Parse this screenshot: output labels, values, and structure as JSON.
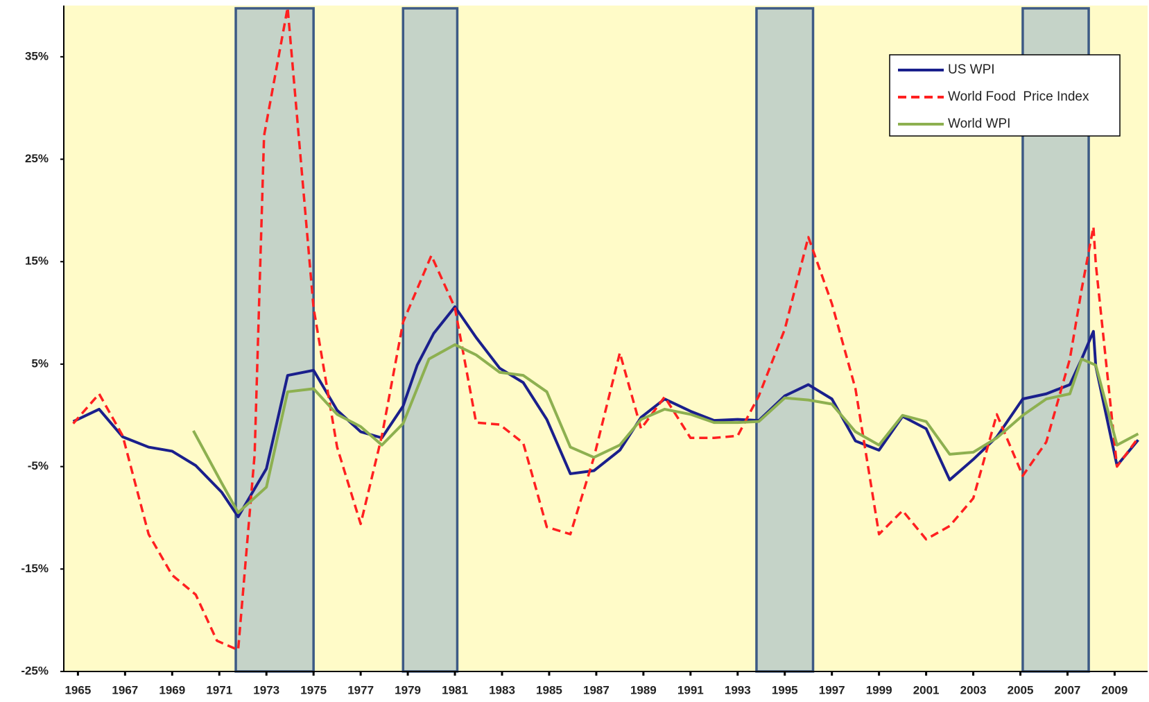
{
  "chart_data": {
    "type": "line",
    "xlim": [
      1964.4,
      2010.4
    ],
    "xticks": [
      1965,
      1967,
      1969,
      1971,
      1973,
      1975,
      1977,
      1979,
      1981,
      1983,
      1985,
      1987,
      1989,
      1991,
      1993,
      1995,
      1997,
      1999,
      2001,
      2003,
      2005,
      2007,
      2009
    ],
    "ylim": [
      -25,
      40
    ],
    "yticks": [
      {
        "value": -25,
        "label": "-25%"
      },
      {
        "value": -15,
        "label": "-15%"
      },
      {
        "value": -5,
        "label": "-5%"
      },
      {
        "value": 5,
        "label": "5%"
      },
      {
        "value": 15,
        "label": "15%"
      },
      {
        "value": 25,
        "label": "25%"
      },
      {
        "value": 35,
        "label": "35%"
      }
    ],
    "legend_position": "top-right",
    "background": "#fffbc8",
    "shaded_periods": [
      [
        1971.7,
        1975.0
      ],
      [
        1978.8,
        1981.1
      ],
      [
        1993.8,
        1996.2
      ],
      [
        2005.1,
        2007.9
      ]
    ],
    "series": [
      {
        "name": "US WPI",
        "color": "#1a1f8c",
        "dash": false,
        "x": [
          1964.8,
          1965.9,
          1966.9,
          1968.0,
          1969.0,
          1970.0,
          1971.1,
          1971.8,
          1973.0,
          1973.9,
          1975.0,
          1976.0,
          1977.0,
          1977.9,
          1978.8,
          1979.4,
          1980.1,
          1981.0,
          1981.9,
          1982.9,
          1983.9,
          1984.9,
          1985.9,
          1986.9,
          1988.0,
          1988.9,
          1989.9,
          1991.0,
          1992.0,
          1993.0,
          1993.9,
          1995.0,
          1996.0,
          1997.0,
          1998.0,
          1999.0,
          2000.0,
          2001.0,
          2002.0,
          2003.0,
          2004.0,
          2005.1,
          2006.1,
          2007.1,
          2007.6,
          2008.1,
          2008.2,
          2009.1,
          2010.0
        ],
        "values": [
          -0.6,
          0.6,
          -2.1,
          -3.1,
          -3.5,
          -4.9,
          -7.5,
          -9.9,
          -5.2,
          3.9,
          4.4,
          0.5,
          -1.6,
          -2.2,
          0.9,
          4.9,
          8.0,
          10.6,
          7.6,
          4.6,
          3.2,
          -0.4,
          -5.7,
          -5.4,
          -3.4,
          -0.2,
          1.6,
          0.4,
          -0.5,
          -0.4,
          -0.5,
          1.9,
          3.0,
          1.6,
          -2.5,
          -3.4,
          -0.1,
          -1.3,
          -6.3,
          -4.3,
          -2.1,
          1.6,
          2.1,
          3.0,
          5.5,
          8.2,
          4.8,
          -4.9,
          -2.4
        ]
      },
      {
        "name": "World Food  Price Index",
        "color": "#ff2020",
        "dash": true,
        "x": [
          1964.8,
          1965.9,
          1966.9,
          1968.0,
          1969.0,
          1970.0,
          1970.9,
          1971.8,
          1972.5,
          1972.9,
          1973.9,
          1975.0,
          1976.0,
          1977.0,
          1977.9,
          1978.8,
          1980.0,
          1981.0,
          1981.9,
          1982.9,
          1983.9,
          1984.9,
          1985.9,
          1986.9,
          1988.0,
          1988.9,
          1989.9,
          1991.0,
          1992.0,
          1993.0,
          1993.9,
          1995.0,
          1996.0,
          1997.0,
          1998.0,
          1999.0,
          2000.0,
          2001.0,
          2002.0,
          2003.0,
          2004.0,
          2005.1,
          2006.1,
          2007.1,
          2007.6,
          2008.1,
          2008.2,
          2009.1,
          2010.0
        ],
        "values": [
          -0.8,
          2.1,
          -2.0,
          -11.6,
          -15.6,
          -17.5,
          -22.0,
          -22.9,
          -3.8,
          27.3,
          39.8,
          10.5,
          -3.1,
          -10.6,
          -2.0,
          9.1,
          15.6,
          10.5,
          -0.7,
          -0.9,
          -2.7,
          -10.9,
          -11.6,
          -4.1,
          6.1,
          -1.3,
          1.8,
          -2.2,
          -2.2,
          -2.0,
          1.9,
          8.4,
          17.4,
          10.9,
          2.6,
          -11.6,
          -9.3,
          -12.1,
          -10.8,
          -8.1,
          0.1,
          -5.9,
          -2.6,
          5.5,
          12.3,
          18.4,
          14.8,
          -5.0,
          -2.2
        ]
      },
      {
        "name": "World WPI",
        "color": "#8db050",
        "dash": false,
        "x": [
          1969.9,
          1971.1,
          1971.8,
          1973.0,
          1973.9,
          1975.0,
          1976.0,
          1977.0,
          1977.9,
          1978.8,
          1979.9,
          1981.0,
          1981.9,
          1982.9,
          1983.9,
          1984.9,
          1985.9,
          1986.9,
          1988.0,
          1988.9,
          1989.9,
          1991.0,
          1992.0,
          1993.0,
          1993.9,
          1995.0,
          1996.0,
          1997.0,
          1998.0,
          1999.0,
          2000.0,
          2001.0,
          2002.0,
          2003.0,
          2004.0,
          2005.1,
          2006.1,
          2007.1,
          2007.6,
          2008.2,
          2009.1,
          2010.0
        ],
        "values": [
          -1.5,
          -6.6,
          -9.5,
          -7.0,
          2.3,
          2.6,
          0.1,
          -1.1,
          -2.9,
          -0.8,
          5.5,
          6.9,
          5.9,
          4.2,
          3.9,
          2.3,
          -3.1,
          -4.1,
          -2.9,
          -0.4,
          0.6,
          0.1,
          -0.7,
          -0.7,
          -0.6,
          1.7,
          1.5,
          1.1,
          -1.6,
          -2.9,
          0.0,
          -0.6,
          -3.8,
          -3.6,
          -2.2,
          0.0,
          1.6,
          2.1,
          5.5,
          4.9,
          -2.9,
          -1.8
        ]
      }
    ]
  }
}
